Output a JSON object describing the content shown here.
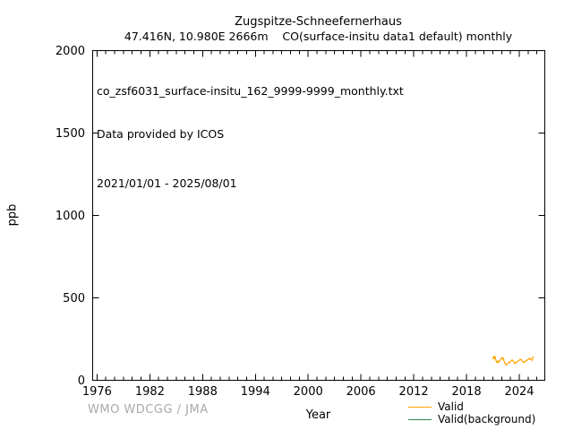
{
  "footer": {
    "watermark": "WMO WDCGG / JMA"
  },
  "chart_data": {
    "type": "line",
    "title": "Zugspitze-Schneefernerhaus",
    "subtitle": "47.416N, 10.980E 2666m    CO(surface-insitu data1 default) monthly",
    "xlabel": "Year",
    "ylabel": "ppb",
    "xlim": [
      1975.5,
      2026.9
    ],
    "ylim": [
      0,
      2000
    ],
    "x_major_ticks": [
      1976,
      1982,
      1988,
      1994,
      2000,
      2006,
      2012,
      2018,
      2024
    ],
    "x_minor_tick_step": 1,
    "y_ticks": [
      0,
      500,
      1000,
      1500,
      2000
    ],
    "grid": false,
    "legend_position": "bottom-right-below-axis",
    "annotations": {
      "filename": "co_zsf6031_surface-insitu_162_9999-9999_monthly.txt",
      "provider": "Data provided by ICOS",
      "date_range": "2021/01/01 - 2025/08/01"
    },
    "series": [
      {
        "name": "Valid",
        "color": "#ffa500",
        "cadence": "monthly",
        "start": "2021-01",
        "end": "2025-08",
        "x_start": 2021.0,
        "x_step": 0.0833333,
        "values": [
          126,
          145,
          132,
          144,
          122,
          112,
          106,
          118,
          110,
          116,
          122,
          128,
          138,
          130,
          136,
          120,
          108,
          98,
          92,
          96,
          102,
          106,
          110,
          108,
          112,
          118,
          124,
          120,
          114,
          106,
          100,
          108,
          112,
          110,
          116,
          118,
          122,
          128,
          124,
          126,
          118,
          110,
          106,
          112,
          116,
          114,
          120,
          124,
          126,
          132,
          128,
          134,
          126,
          120,
          128,
          146
        ]
      },
      {
        "name": "Valid(background)",
        "color": "#2e8b57",
        "cadence": "monthly",
        "x_start": 2021.0,
        "x_step": 0.0833333,
        "values": []
      }
    ]
  }
}
